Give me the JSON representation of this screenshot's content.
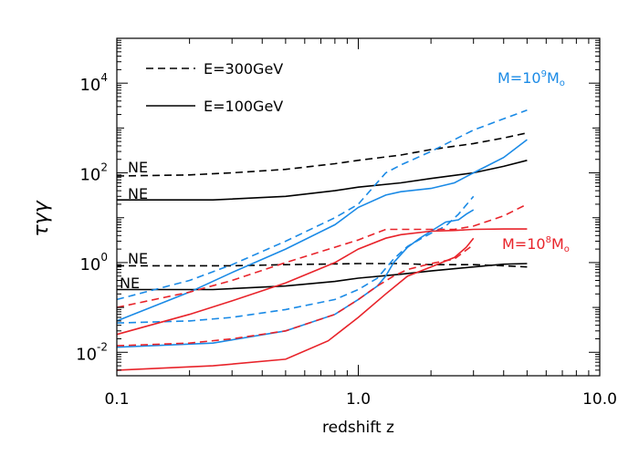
{
  "chart_data": {
    "type": "line",
    "xlabel": "redshift z",
    "ylabel": "τγγ",
    "x_scale": "log",
    "y_scale": "log",
    "xlim": [
      0.1,
      10
    ],
    "ylim": [
      0.003,
      100000
    ],
    "x_ticks": [
      {
        "value": 0.1,
        "label": "0.1"
      },
      {
        "value": 1,
        "label": "1.0"
      },
      {
        "value": 10,
        "label": "10.0"
      }
    ],
    "y_ticks": [
      {
        "value": 0.01,
        "base": "10",
        "exp": "-2"
      },
      {
        "value": 1,
        "base": "10",
        "exp": "0"
      },
      {
        "value": 100,
        "base": "10",
        "exp": "2"
      },
      {
        "value": 10000,
        "base": "10",
        "exp": "4"
      }
    ],
    "legend": {
      "placement": "top-left",
      "entries": [
        {
          "label": "E=300GeV",
          "style": "dashed"
        },
        {
          "label": "E=100GeV",
          "style": "solid"
        }
      ]
    },
    "annotations": [
      {
        "id": "m9",
        "text": "M=10",
        "exp": "9",
        "tail": "M",
        "sub": "o",
        "color": "#1a8ae6"
      },
      {
        "id": "m8",
        "text": "M=10",
        "exp": "8",
        "tail": "M",
        "sub": "o",
        "color": "#e8232a"
      },
      {
        "id": "ne1",
        "text": "NE",
        "color": "#000000"
      },
      {
        "id": "ne2",
        "text": "NE",
        "color": "#000000"
      },
      {
        "id": "ne3",
        "text": "NE",
        "color": "#000000"
      },
      {
        "id": "ne4",
        "text": "NE",
        "color": "#000000"
      }
    ],
    "series": [
      {
        "color": "#000000",
        "style": "dashed",
        "points": [
          [
            0.1,
            85
          ],
          [
            0.2,
            90
          ],
          [
            0.3,
            100
          ],
          [
            0.5,
            120
          ],
          [
            0.8,
            160
          ],
          [
            1,
            190
          ],
          [
            1.5,
            250
          ],
          [
            2,
            330
          ],
          [
            3,
            450
          ],
          [
            4,
            600
          ],
          [
            5,
            780
          ]
        ]
      },
      {
        "color": "#000000",
        "style": "solid",
        "points": [
          [
            0.1,
            25
          ],
          [
            0.25,
            25
          ],
          [
            0.5,
            30
          ],
          [
            0.8,
            40
          ],
          [
            1,
            48
          ],
          [
            1.5,
            60
          ],
          [
            2,
            75
          ],
          [
            3,
            100
          ],
          [
            4,
            140
          ],
          [
            5,
            190
          ]
        ]
      },
      {
        "color": "#000000",
        "style": "dashed",
        "points": [
          [
            0.1,
            0.85
          ],
          [
            0.3,
            0.85
          ],
          [
            0.5,
            0.9
          ],
          [
            1,
            0.95
          ],
          [
            1.5,
            0.95
          ],
          [
            2,
            0.9
          ],
          [
            3,
            0.9
          ],
          [
            4,
            0.85
          ],
          [
            5,
            0.8
          ]
        ]
      },
      {
        "color": "#000000",
        "style": "solid",
        "points": [
          [
            0.1,
            0.25
          ],
          [
            0.25,
            0.25
          ],
          [
            0.5,
            0.3
          ],
          [
            0.8,
            0.38
          ],
          [
            1,
            0.45
          ],
          [
            1.5,
            0.55
          ],
          [
            2,
            0.65
          ],
          [
            3,
            0.8
          ],
          [
            4,
            0.92
          ],
          [
            5,
            0.95
          ]
        ]
      },
      {
        "color": "#1a8ae6",
        "style": "dashed",
        "points": [
          [
            0.1,
            0.15
          ],
          [
            0.2,
            0.4
          ],
          [
            0.3,
            0.9
          ],
          [
            0.5,
            3
          ],
          [
            0.8,
            10
          ],
          [
            1,
            20
          ],
          [
            1.3,
            100
          ],
          [
            1.5,
            150
          ],
          [
            2,
            300
          ],
          [
            2.5,
            550
          ],
          [
            3,
            900
          ],
          [
            4,
            1600
          ],
          [
            5,
            2500
          ]
        ]
      },
      {
        "color": "#1a8ae6",
        "style": "solid",
        "points": [
          [
            0.1,
            0.05
          ],
          [
            0.2,
            0.22
          ],
          [
            0.3,
            0.6
          ],
          [
            0.5,
            2
          ],
          [
            0.8,
            7
          ],
          [
            1,
            17
          ],
          [
            1.3,
            32
          ],
          [
            1.5,
            38
          ],
          [
            2,
            45
          ],
          [
            2.5,
            60
          ],
          [
            3,
            100
          ],
          [
            4,
            220
          ],
          [
            5,
            550
          ]
        ]
      },
      {
        "color": "#1a8ae6",
        "style": "dashed",
        "points": [
          [
            0.1,
            0.045
          ],
          [
            0.2,
            0.05
          ],
          [
            0.3,
            0.06
          ],
          [
            0.5,
            0.09
          ],
          [
            0.8,
            0.15
          ],
          [
            1,
            0.25
          ],
          [
            1.2,
            0.45
          ],
          [
            1.4,
            1.2
          ],
          [
            1.6,
            2.3
          ],
          [
            1.8,
            3.3
          ],
          [
            2,
            4.5
          ],
          [
            2.3,
            6.5
          ],
          [
            2.6,
            12
          ],
          [
            3,
            30
          ]
        ]
      },
      {
        "color": "#1a8ae6",
        "style": "solid",
        "points": [
          [
            0.1,
            0.013
          ],
          [
            0.25,
            0.016
          ],
          [
            0.5,
            0.03
          ],
          [
            0.8,
            0.07
          ],
          [
            1,
            0.15
          ],
          [
            1.2,
            0.3
          ],
          [
            1.3,
            0.5
          ],
          [
            1.4,
            1.0
          ],
          [
            1.6,
            2.2
          ],
          [
            1.8,
            3.5
          ],
          [
            2,
            5
          ],
          [
            2.3,
            8
          ],
          [
            2.6,
            9
          ],
          [
            2.8,
            12
          ],
          [
            3,
            15
          ]
        ]
      },
      {
        "color": "#e8232a",
        "style": "dashed",
        "points": [
          [
            0.1,
            0.1
          ],
          [
            0.2,
            0.22
          ],
          [
            0.3,
            0.4
          ],
          [
            0.5,
            1.0
          ],
          [
            0.8,
            2.2
          ],
          [
            1,
            3.2
          ],
          [
            1.3,
            5.5
          ],
          [
            1.5,
            5.5
          ],
          [
            2,
            5.5
          ],
          [
            2.5,
            5.5
          ],
          [
            3,
            6.5
          ],
          [
            4,
            11
          ],
          [
            5,
            20
          ]
        ]
      },
      {
        "color": "#e8232a",
        "style": "solid",
        "points": [
          [
            0.1,
            0.025
          ],
          [
            0.2,
            0.07
          ],
          [
            0.3,
            0.14
          ],
          [
            0.5,
            0.35
          ],
          [
            0.8,
            1
          ],
          [
            1,
            2
          ],
          [
            1.3,
            3.5
          ],
          [
            1.5,
            4.2
          ],
          [
            2,
            5
          ],
          [
            2.5,
            5.2
          ],
          [
            3,
            5.5
          ],
          [
            4,
            5.6
          ],
          [
            5,
            5.6
          ]
        ]
      },
      {
        "color": "#e8232a",
        "style": "dashed",
        "points": [
          [
            0.1,
            0.014
          ],
          [
            0.2,
            0.016
          ],
          [
            0.3,
            0.02
          ],
          [
            0.5,
            0.03
          ],
          [
            0.8,
            0.07
          ],
          [
            1,
            0.15
          ],
          [
            1.2,
            0.3
          ],
          [
            1.4,
            0.5
          ],
          [
            1.6,
            0.7
          ],
          [
            2,
            0.95
          ],
          [
            2.5,
            1.2
          ],
          [
            3,
            2.5
          ]
        ]
      },
      {
        "color": "#e8232a",
        "style": "solid",
        "points": [
          [
            0.1,
            0.004
          ],
          [
            0.25,
            0.005
          ],
          [
            0.5,
            0.007
          ],
          [
            0.75,
            0.018
          ],
          [
            1,
            0.06
          ],
          [
            1.3,
            0.2
          ],
          [
            1.6,
            0.5
          ],
          [
            2,
            0.8
          ],
          [
            2.5,
            1.3
          ],
          [
            2.8,
            2.2
          ],
          [
            3,
            3.5
          ]
        ]
      }
    ]
  }
}
